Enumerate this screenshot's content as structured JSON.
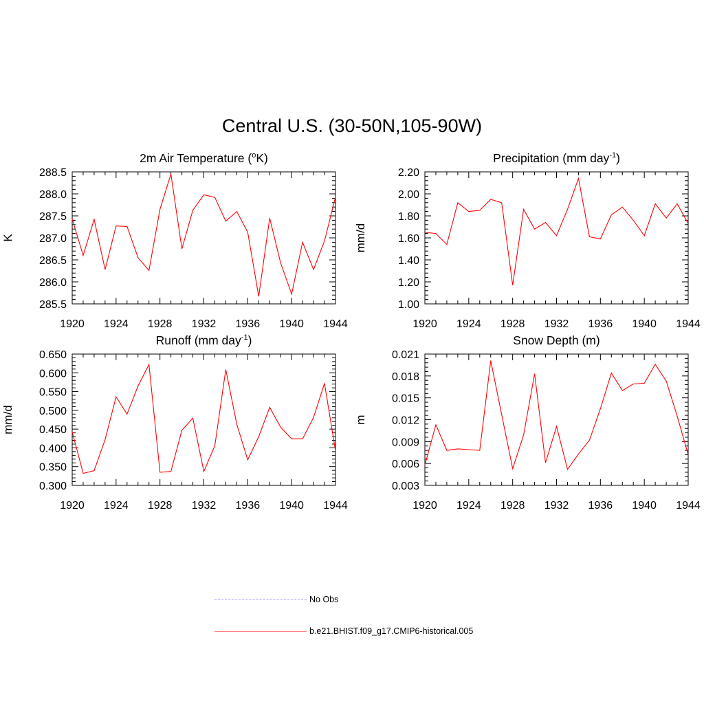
{
  "title": "Central U.S. (30-50N,105-90W)",
  "legend": [
    {
      "label": "No Obs",
      "color": "#a0a0ff",
      "style": "dashed"
    },
    {
      "label": "b.e21.BHIST.f09_g17.CMIP6-historical.005",
      "color": "#ff0000",
      "style": "solid"
    }
  ],
  "chart_data": [
    {
      "type": "line",
      "title": "2m Air Temperature (",
      "title_sup": "o",
      "title_tail": "K)",
      "ylabel": "K",
      "xlim": [
        1920,
        1944
      ],
      "ylim": [
        285.5,
        288.5
      ],
      "xticks": [
        1920,
        1924,
        1928,
        1932,
        1936,
        1940,
        1944
      ],
      "yticks": [
        "285.5",
        "286.0",
        "286.5",
        "287.0",
        "287.5",
        "288.0",
        "288.5"
      ],
      "x": [
        1920,
        1921,
        1922,
        1923,
        1924,
        1925,
        1926,
        1927,
        1928,
        1929,
        1930,
        1931,
        1932,
        1933,
        1934,
        1935,
        1936,
        1937,
        1938,
        1939,
        1940,
        1941,
        1942,
        1943,
        1944
      ],
      "series": [
        {
          "values": [
            287.43,
            286.6,
            287.42,
            286.28,
            287.27,
            287.26,
            286.55,
            286.26,
            287.65,
            288.45,
            286.75,
            287.63,
            287.98,
            287.92,
            287.38,
            287.6,
            287.13,
            285.67,
            287.45,
            286.43,
            285.72,
            286.9,
            286.28,
            286.93,
            287.93
          ],
          "color": "#ff0000"
        }
      ]
    },
    {
      "type": "line",
      "title": "Precipitation (mm day",
      "title_sup": "-1",
      "title_tail": ")",
      "ylabel": "mm/d",
      "xlim": [
        1920,
        1944
      ],
      "ylim": [
        1.0,
        2.2
      ],
      "xticks": [
        1920,
        1924,
        1928,
        1932,
        1936,
        1940,
        1944
      ],
      "yticks": [
        "1.00",
        "1.20",
        "1.40",
        "1.60",
        "1.80",
        "2.00",
        "2.20"
      ],
      "x": [
        1920,
        1921,
        1922,
        1923,
        1924,
        1925,
        1926,
        1927,
        1928,
        1929,
        1930,
        1931,
        1932,
        1933,
        1934,
        1935,
        1936,
        1937,
        1938,
        1939,
        1940,
        1941,
        1942,
        1943,
        1944
      ],
      "series": [
        {
          "values": [
            1.65,
            1.64,
            1.54,
            1.92,
            1.84,
            1.85,
            1.95,
            1.92,
            1.17,
            1.86,
            1.68,
            1.74,
            1.62,
            1.86,
            2.14,
            1.61,
            1.59,
            1.81,
            1.88,
            1.76,
            1.62,
            1.91,
            1.78,
            1.91,
            1.73
          ],
          "color": "#ff0000"
        }
      ]
    },
    {
      "type": "line",
      "title": "Runoff (mm day",
      "title_sup": "-1",
      "title_tail": ")",
      "ylabel": "mm/d",
      "xlim": [
        1920,
        1944
      ],
      "ylim": [
        0.3,
        0.65
      ],
      "xticks": [
        1920,
        1924,
        1928,
        1932,
        1936,
        1940,
        1944
      ],
      "yticks": [
        "0.300",
        "0.350",
        "0.400",
        "0.450",
        "0.500",
        "0.550",
        "0.600",
        "0.650"
      ],
      "x": [
        1920,
        1921,
        1922,
        1923,
        1924,
        1925,
        1926,
        1927,
        1928,
        1929,
        1930,
        1931,
        1932,
        1933,
        1934,
        1935,
        1936,
        1937,
        1938,
        1939,
        1940,
        1941,
        1942,
        1943,
        1944
      ],
      "series": [
        {
          "values": [
            0.443,
            0.332,
            0.339,
            0.422,
            0.536,
            0.49,
            0.565,
            0.622,
            0.335,
            0.337,
            0.447,
            0.479,
            0.337,
            0.406,
            0.609,
            0.463,
            0.368,
            0.43,
            0.508,
            0.455,
            0.424,
            0.424,
            0.481,
            0.572,
            0.392
          ],
          "color": "#ff0000"
        }
      ]
    },
    {
      "type": "line",
      "title": "Snow Depth (m)",
      "title_sup": "",
      "title_tail": "",
      "ylabel": "m",
      "xlim": [
        1920,
        1944
      ],
      "ylim": [
        0.003,
        0.021
      ],
      "xticks": [
        1920,
        1924,
        1928,
        1932,
        1936,
        1940,
        1944
      ],
      "yticks": [
        "0.003",
        "0.006",
        "0.009",
        "0.012",
        "0.015",
        "0.018",
        "0.021"
      ],
      "x": [
        1920,
        1921,
        1922,
        1923,
        1924,
        1925,
        1926,
        1927,
        1928,
        1929,
        1930,
        1931,
        1932,
        1933,
        1934,
        1935,
        1936,
        1937,
        1938,
        1939,
        1940,
        1941,
        1942,
        1943,
        1944
      ],
      "series": [
        {
          "values": [
            0.0058,
            0.0113,
            0.0078,
            0.008,
            0.0079,
            0.0078,
            0.0201,
            0.0127,
            0.0053,
            0.0099,
            0.0183,
            0.0061,
            0.0111,
            0.0052,
            0.0073,
            0.0092,
            0.0135,
            0.0184,
            0.016,
            0.0169,
            0.017,
            0.0196,
            0.0173,
            0.0125,
            0.0072
          ],
          "color": "#ff0000"
        }
      ]
    }
  ]
}
